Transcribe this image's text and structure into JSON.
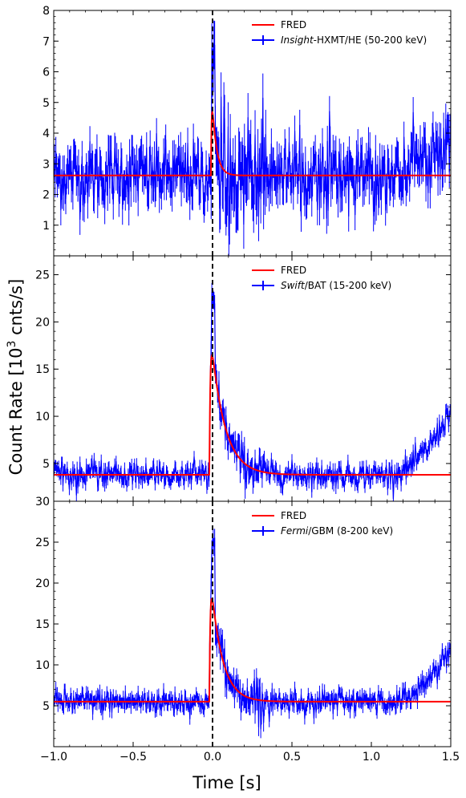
{
  "chart_data": [
    {
      "type": "line",
      "panel": "top",
      "instrument": "Insight-HXMT/HE",
      "xlim": [
        -1.0,
        1.5
      ],
      "ylim": [
        0,
        8
      ],
      "yticks": [
        1,
        2,
        3,
        4,
        5,
        6,
        7,
        8
      ],
      "grid": false,
      "legend_position": "top-right",
      "legend": [
        {
          "label_italic": "",
          "label": "FRED",
          "color": "#ff0000",
          "kind": "line"
        },
        {
          "label_italic": "Insight",
          "label": "-HXMT/HE (50-200 keV)",
          "color": "#0000ff",
          "kind": "errorbar"
        }
      ],
      "fred": {
        "t0": -0.01,
        "baseline": 2.62,
        "peak": 5.8,
        "rise": 0.004,
        "decay": 0.028
      },
      "data_series": {
        "name": "Insight-HXMT/HE (50-200 keV)",
        "color": "#0000ff",
        "noise": 0.55,
        "tail_rise": {
          "start": 1.05,
          "end": 1.5,
          "add": 1.3
        },
        "peak_max": 7.2
      }
    },
    {
      "type": "line",
      "panel": "middle",
      "instrument": "Swift/BAT",
      "xlim": [
        -1.0,
        1.5
      ],
      "ylim": [
        1,
        27
      ],
      "yticks": [
        5,
        10,
        15,
        20,
        25
      ],
      "grid": false,
      "legend_position": "top-right",
      "legend": [
        {
          "label_italic": "",
          "label": "FRED",
          "color": "#ff0000",
          "kind": "line"
        },
        {
          "label_italic": "Swift",
          "label": "/BAT (15-200 keV)",
          "color": "#0000ff",
          "kind": "errorbar"
        }
      ],
      "fred": {
        "t0": -0.02,
        "baseline": 3.8,
        "peak": 20.2,
        "rise": 0.006,
        "decay": 0.085
      },
      "data_series": {
        "name": "Swift/BAT (15-200 keV)",
        "color": "#0000ff",
        "noise": 0.65,
        "tail_rise": {
          "start": 1.1,
          "end": 1.5,
          "add": 7.0
        },
        "peak_max": 23.4
      }
    },
    {
      "type": "line",
      "panel": "bottom",
      "instrument": "Fermi/GBM",
      "xlim": [
        -1.0,
        1.5
      ],
      "ylim": [
        0,
        30
      ],
      "yticks": [
        5,
        10,
        15,
        20,
        25,
        30
      ],
      "grid": false,
      "legend_position": "top-right",
      "legend": [
        {
          "label_italic": "",
          "label": "FRED",
          "color": "#ff0000",
          "kind": "line"
        },
        {
          "label_italic": "Fermi",
          "label": "/GBM (8-200 keV)",
          "color": "#0000ff",
          "kind": "errorbar"
        }
      ],
      "fred": {
        "t0": -0.02,
        "baseline": 5.5,
        "peak": 22.5,
        "rise": 0.006,
        "decay": 0.07
      },
      "data_series": {
        "name": "Fermi/GBM (8-200 keV)",
        "color": "#0000ff",
        "noise": 0.75,
        "tail_rise": {
          "start": 1.1,
          "end": 1.5,
          "add": 6.5
        },
        "peak_max": 25.6
      }
    }
  ],
  "shared": {
    "xlabel": "Time [s]",
    "ylabel_main": "Count Rate [10",
    "ylabel_sup": "3",
    "ylabel_tail": " cnts/s]",
    "xticks": [
      -1.0,
      -0.5,
      0.0,
      0.5,
      1.0,
      1.5
    ],
    "xtick_labels": [
      "−1.0",
      "−0.5",
      "0.0",
      "0.5",
      "1.0",
      "1.5"
    ],
    "vline_x": 0.0,
    "vline_style": "dashed",
    "vline_color": "#000000",
    "fred_color": "#ff0000",
    "data_color": "#0000ff"
  }
}
